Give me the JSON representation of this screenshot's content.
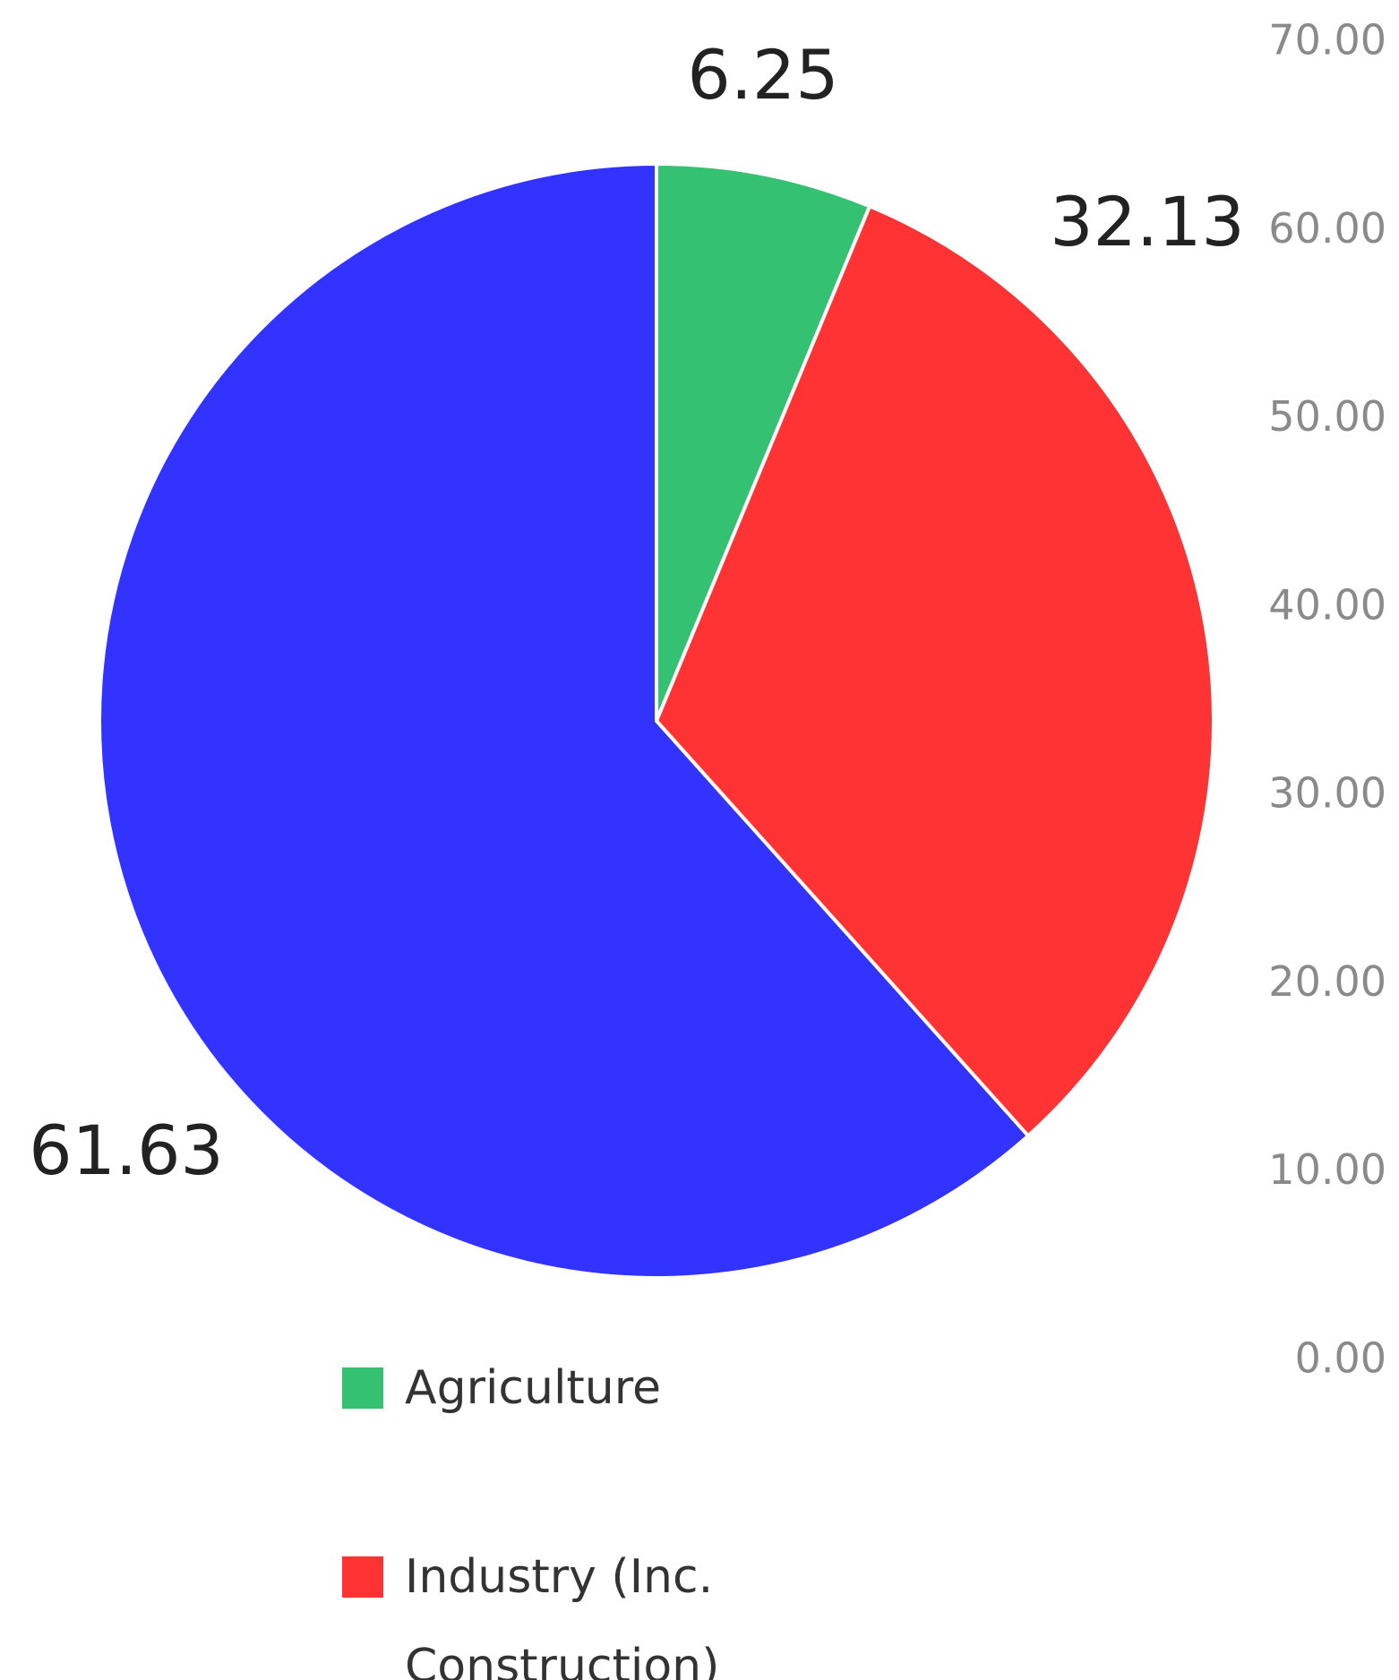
{
  "chart_data": {
    "type": "pie",
    "categories": [
      "Agriculture",
      "Industry (Inc. Construction)",
      null
    ],
    "values": [
      6.25,
      32.13,
      61.63
    ],
    "colors": [
      "#35c172",
      "#ff3333",
      "#3333ff"
    ],
    "ylim": [
      0,
      70
    ],
    "yticks": [
      {
        "value": 0,
        "label": "0.00"
      },
      {
        "value": 10,
        "label": "10.00"
      },
      {
        "value": 20,
        "label": "20.00"
      },
      {
        "value": 30,
        "label": "30.00"
      },
      {
        "value": 40,
        "label": "40.00"
      },
      {
        "value": 50,
        "label": "50.00"
      },
      {
        "value": 60,
        "label": "60.00"
      },
      {
        "value": 70,
        "label": "70.00"
      }
    ]
  }
}
